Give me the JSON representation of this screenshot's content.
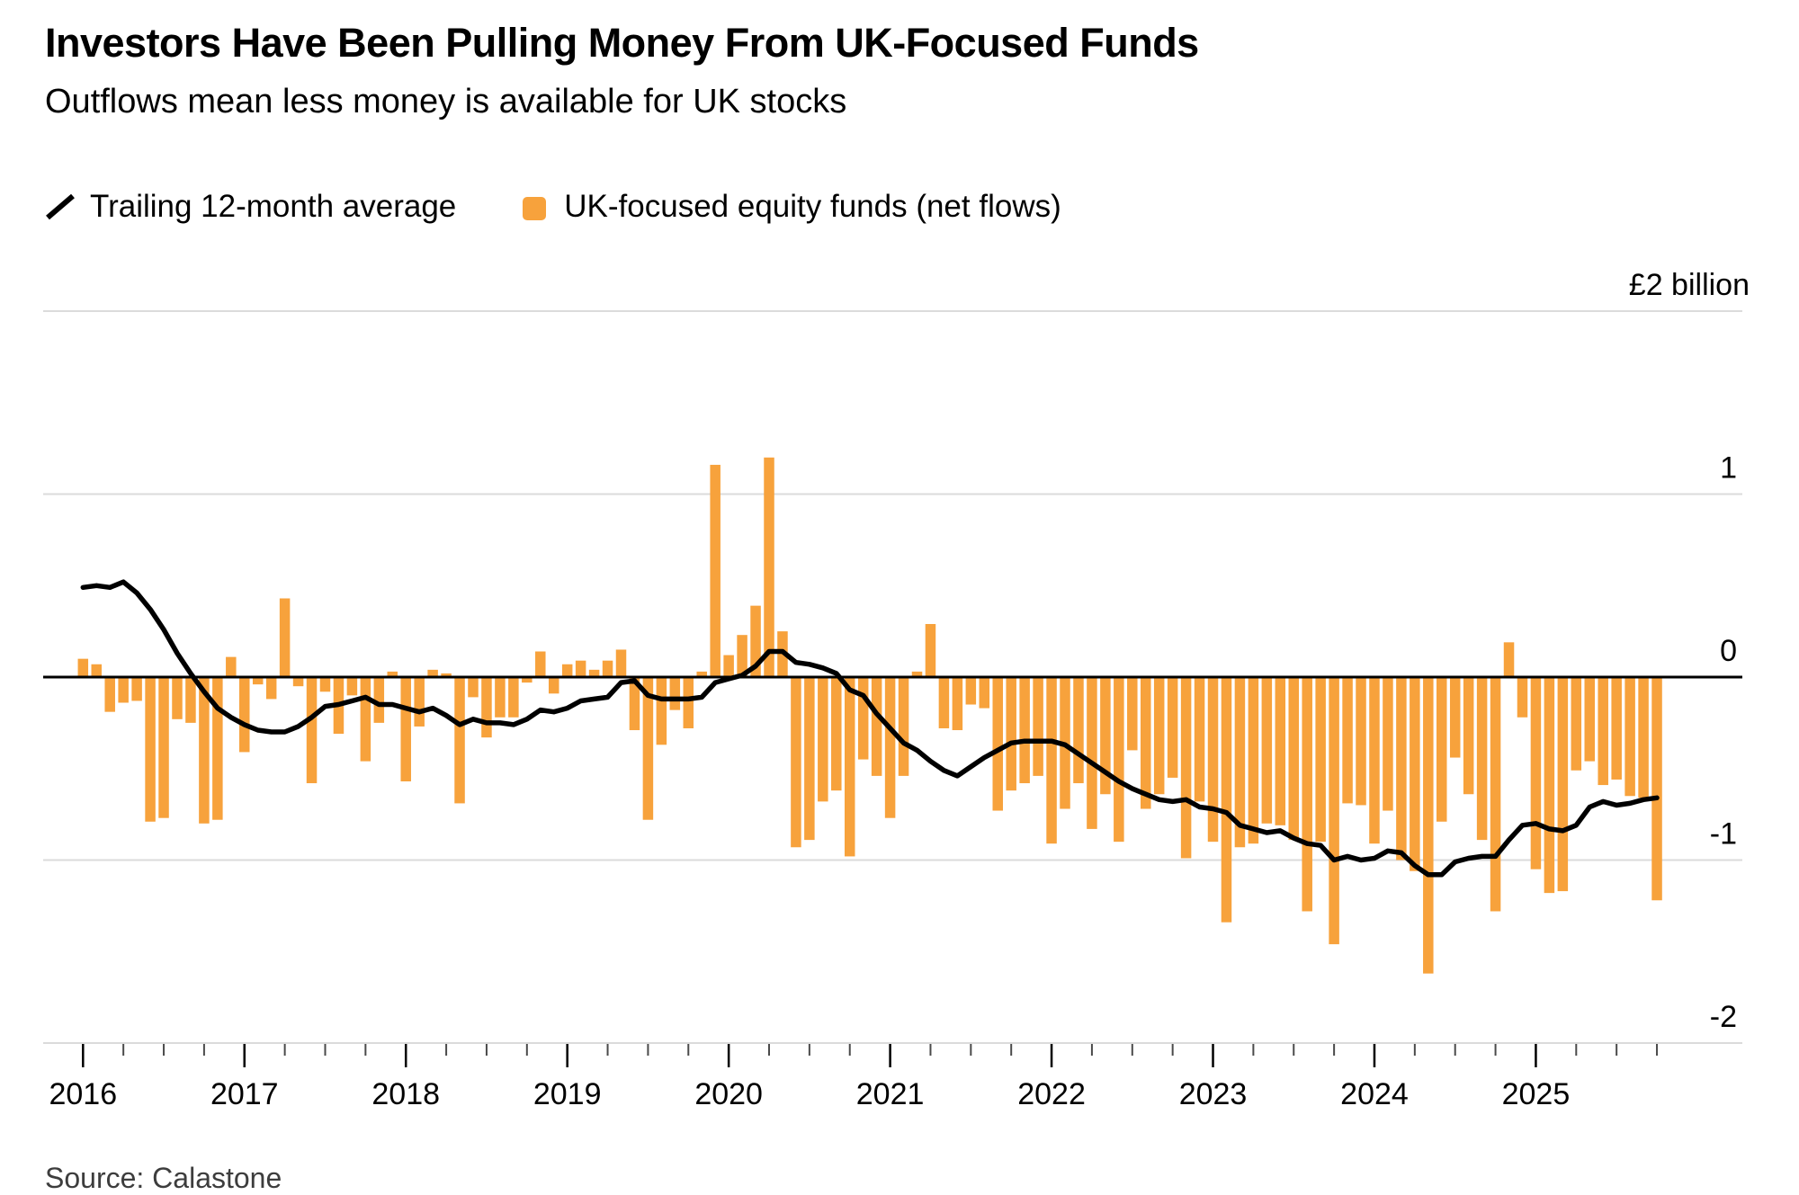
{
  "header": {
    "title": "Investors Have Been Pulling Money From UK-Focused Funds",
    "subtitle": "Outflows mean less money is available for UK stocks"
  },
  "legend": {
    "items": [
      {
        "label": "Trailing 12-month average",
        "marker": "line-icon",
        "color": "#000000"
      },
      {
        "label": "UK-focused equity funds (net flows)",
        "marker": "square-icon",
        "color": "#F7A23C"
      }
    ]
  },
  "source": "Source: Calastone",
  "chart_data": {
    "type": "bar+line",
    "title": "Investors Have Been Pulling Money From UK-Focused Funds",
    "subtitle": "Outflows mean less money is available for UK stocks",
    "x_start": "2016-01",
    "x_end": "2025-10",
    "x_freq": "monthly",
    "n_points": 118,
    "y_axis": {
      "unit": "billion GBP",
      "range": [
        -2.2,
        2.1
      ],
      "grid": "on",
      "ticks": [
        {
          "v": 2,
          "label": "£2 billion"
        },
        {
          "v": 1,
          "label": "1"
        },
        {
          "v": 0,
          "label": "0"
        },
        {
          "v": -1,
          "label": "-1"
        },
        {
          "v": -2,
          "label": "-2"
        }
      ]
    },
    "x_axis": {
      "tick_years": [
        "2016",
        "2017",
        "2018",
        "2019",
        "2020",
        "2021",
        "2022",
        "2023",
        "2024",
        "2025"
      ],
      "minor_ticks": "quarterly"
    },
    "series": [
      {
        "name": "UK-focused equity funds (net flows)",
        "type": "bar",
        "color": "#F7A23C",
        "values": [
          0.1,
          0.07,
          -0.19,
          -0.14,
          -0.13,
          -0.79,
          -0.77,
          -0.23,
          -0.25,
          -0.8,
          -0.78,
          0.11,
          -0.41,
          -0.04,
          -0.12,
          0.43,
          -0.05,
          -0.58,
          -0.08,
          -0.31,
          -0.1,
          -0.46,
          -0.25,
          0.03,
          -0.57,
          -0.27,
          0.04,
          0.02,
          -0.69,
          -0.11,
          -0.33,
          -0.22,
          -0.22,
          -0.03,
          0.14,
          -0.09,
          0.07,
          0.09,
          0.04,
          0.09,
          0.15,
          -0.29,
          -0.78,
          -0.37,
          -0.18,
          -0.28,
          0.03,
          1.16,
          0.12,
          0.23,
          0.39,
          1.2,
          0.25,
          -0.93,
          -0.89,
          -0.68,
          -0.62,
          -0.98,
          -0.45,
          -0.54,
          -0.77,
          -0.54,
          0.03,
          0.29,
          -0.28,
          -0.29,
          -0.15,
          -0.17,
          -0.73,
          -0.62,
          -0.58,
          -0.54,
          -0.91,
          -0.72,
          -0.58,
          -0.83,
          -0.64,
          -0.9,
          -0.4,
          -0.72,
          -0.64,
          -0.55,
          -0.99,
          -0.68,
          -0.9,
          -1.34,
          -0.93,
          -0.91,
          -0.8,
          -0.81,
          -0.89,
          -1.28,
          -0.9,
          -1.46,
          -0.69,
          -0.7,
          -0.91,
          -0.73,
          -1.0,
          -1.06,
          -1.62,
          -0.79,
          -0.44,
          -0.64,
          -0.89,
          -1.28,
          0.19,
          -0.22,
          -1.05,
          -1.18,
          -1.17,
          -0.51,
          -0.46,
          -0.59,
          -0.56,
          -0.65,
          -0.66,
          -1.22
        ]
      },
      {
        "name": "Trailing 12-month average",
        "type": "line",
        "color": "#000000",
        "values": [
          0.49,
          0.5,
          0.49,
          0.52,
          0.46,
          0.37,
          0.26,
          0.13,
          0.02,
          -0.08,
          -0.17,
          -0.22,
          -0.26,
          -0.29,
          -0.3,
          -0.3,
          -0.27,
          -0.22,
          -0.16,
          -0.15,
          -0.13,
          -0.11,
          -0.15,
          -0.15,
          -0.17,
          -0.19,
          -0.17,
          -0.21,
          -0.26,
          -0.23,
          -0.25,
          -0.25,
          -0.26,
          -0.23,
          -0.18,
          -0.19,
          -0.17,
          -0.13,
          -0.12,
          -0.11,
          -0.03,
          -0.02,
          -0.1,
          -0.12,
          -0.12,
          -0.12,
          -0.11,
          -0.03,
          -0.01,
          0.01,
          0.06,
          0.14,
          0.14,
          0.08,
          0.07,
          0.05,
          0.02,
          -0.07,
          -0.1,
          -0.2,
          -0.28,
          -0.36,
          -0.4,
          -0.46,
          -0.51,
          -0.54,
          -0.49,
          -0.44,
          -0.4,
          -0.36,
          -0.35,
          -0.35,
          -0.35,
          -0.37,
          -0.42,
          -0.47,
          -0.52,
          -0.57,
          -0.61,
          -0.64,
          -0.67,
          -0.68,
          -0.67,
          -0.71,
          -0.72,
          -0.74,
          -0.81,
          -0.83,
          -0.85,
          -0.84,
          -0.88,
          -0.91,
          -0.92,
          -1.0,
          -0.98,
          -1.0,
          -0.99,
          -0.95,
          -0.96,
          -1.03,
          -1.08,
          -1.08,
          -1.01,
          -0.99,
          -0.98,
          -0.98,
          -0.89,
          -0.81,
          -0.8,
          -0.83,
          -0.84,
          -0.81,
          -0.71,
          -0.68,
          -0.7,
          -0.69,
          -0.67,
          -0.66
        ]
      }
    ],
    "colors": {
      "bar": "#F7A23C",
      "line": "#000000",
      "grid": "#DBDBDB",
      "zero_axis": "#000000"
    }
  }
}
